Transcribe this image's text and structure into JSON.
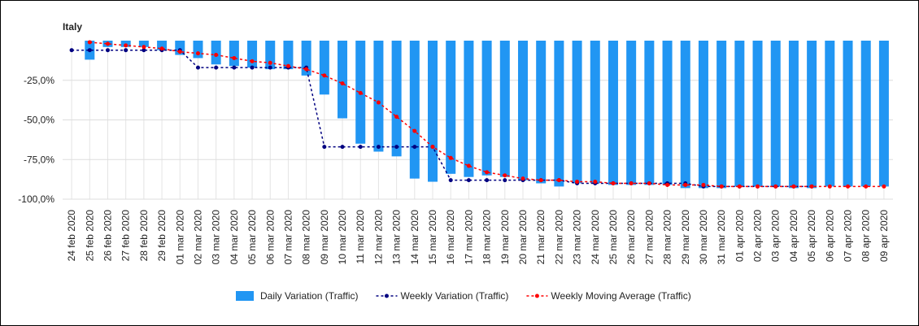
{
  "chart_data": {
    "type": "bar_line",
    "title": "Italy",
    "categories": [
      "24 feb 2020",
      "25 feb 2020",
      "26 feb 2020",
      "27 feb 2020",
      "28 feb 2020",
      "29 feb 2020",
      "01 mar 2020",
      "02 mar 2020",
      "03 mar 2020",
      "04 mar 2020",
      "05 mar 2020",
      "06 mar 2020",
      "07 mar 2020",
      "08 mar 2020",
      "09 mar 2020",
      "10 mar 2020",
      "11 mar 2020",
      "12 mar 2020",
      "13 mar 2020",
      "14 mar 2020",
      "15 mar 2020",
      "16 mar 2020",
      "17 mar 2020",
      "18 mar 2020",
      "19 mar 2020",
      "20 mar 2020",
      "21 mar 2020",
      "22 mar 2020",
      "23 mar 2020",
      "24 mar 2020",
      "25 mar 2020",
      "26 mar 2020",
      "27 mar 2020",
      "28 mar 2020",
      "29 mar 2020",
      "30 mar 2020",
      "31 mar 2020",
      "01 apr 2020",
      "02 apr 2020",
      "03 apr 2020",
      "04 apr 2020",
      "05 apr 2020",
      "06 apr 2020",
      "07 apr 2020",
      "08 apr 2020",
      "09 apr 2020"
    ],
    "series": [
      {
        "name": "Daily Variation (Traffic)",
        "kind": "bar",
        "color": "#2196f3",
        "values": [
          0,
          -12,
          -4,
          -4,
          -4,
          -6,
          -9,
          -11,
          -15,
          -16,
          -17,
          -18,
          -18,
          -22,
          -34,
          -49,
          -65,
          -70,
          -73,
          -87,
          -89,
          -84,
          -86,
          -85,
          -86,
          -88,
          -90,
          -92,
          -90,
          -90,
          -91,
          -91,
          -91,
          -91,
          -93,
          -93,
          -93,
          -92,
          -92,
          -92,
          -93,
          -93,
          -92,
          -92,
          -92,
          -92
        ]
      },
      {
        "name": "Weekly Variation (Traffic)",
        "kind": "line",
        "color": "#000080",
        "values": [
          -6,
          -6,
          -6,
          -6,
          -6,
          -6,
          -6,
          -17,
          -17,
          -17,
          -17,
          -17,
          -17,
          -17,
          -67,
          -67,
          -67,
          -67,
          -67,
          -67,
          -67,
          -88,
          -88,
          -88,
          -88,
          -88,
          -88,
          -88,
          -90,
          -90,
          -90,
          -90,
          -90,
          -90,
          -90,
          -92,
          -92,
          -92,
          -92,
          -92,
          -92,
          -92,
          null,
          null,
          null,
          null
        ]
      },
      {
        "name": "Weekly Moving Average (Traffic)",
        "kind": "line",
        "color": "#ff0000",
        "values": [
          null,
          -1,
          -2,
          -3,
          -4,
          -5,
          -7,
          -8,
          -9,
          -11,
          -13,
          -14,
          -16,
          -18,
          -22,
          -27,
          -33,
          -39,
          -48,
          -57,
          -67,
          -74,
          -79,
          -83,
          -85,
          -87,
          -88,
          -88,
          -89,
          -89,
          -90,
          -90,
          -90,
          -91,
          -91,
          -91,
          -92,
          -92,
          -92,
          -92,
          -92,
          -92,
          -92,
          -92,
          -92,
          -92
        ]
      }
    ],
    "ylim": [
      -100,
      0
    ],
    "yticks": [
      {
        "value": -25,
        "label": "-25,0%"
      },
      {
        "value": -50,
        "label": "-50,0%"
      },
      {
        "value": -75,
        "label": "-75,0%"
      },
      {
        "value": -100,
        "label": "-100,0%"
      }
    ],
    "grid": true
  }
}
